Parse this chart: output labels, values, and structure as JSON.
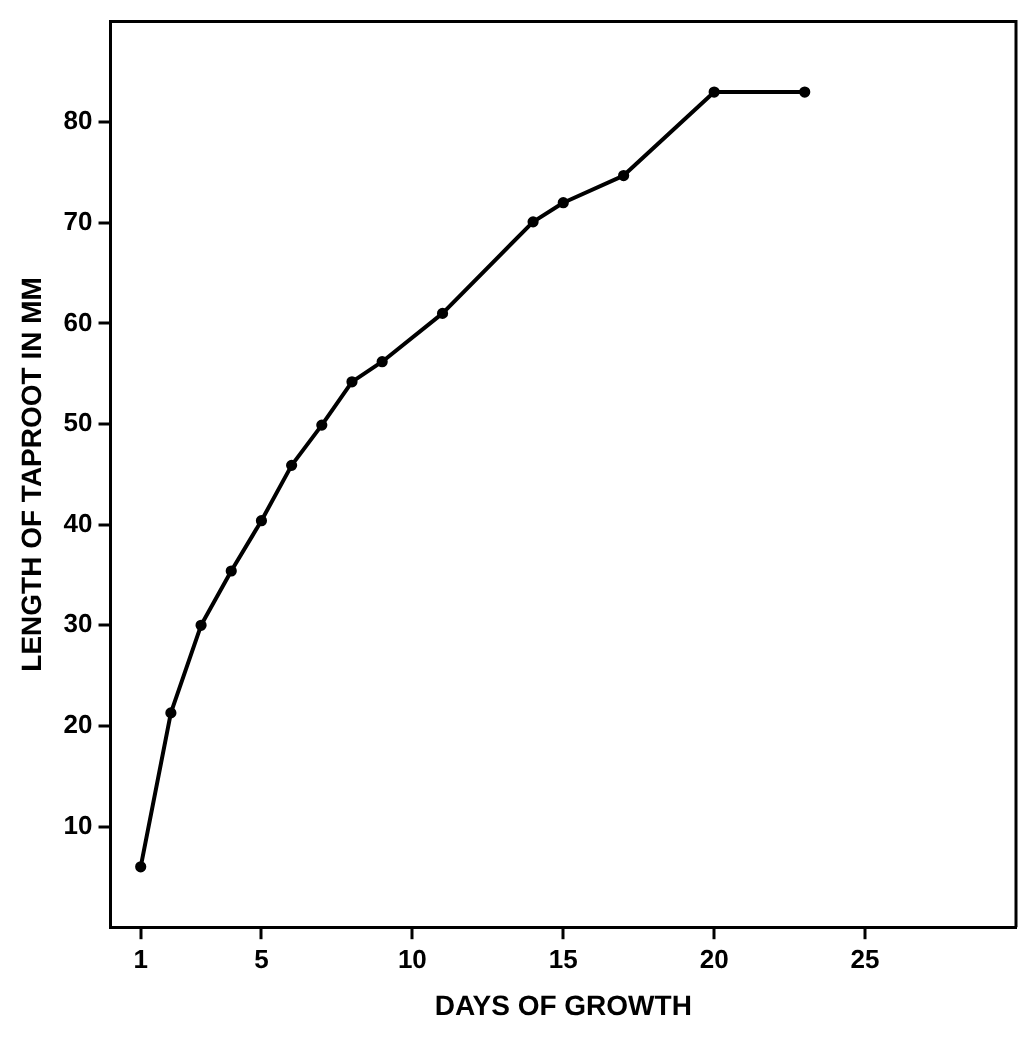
{
  "chart_data": {
    "type": "line",
    "xlabel": "DAYS OF GROWTH",
    "ylabel": "LENGTH OF TAPROOT IN MM",
    "x": [
      1,
      2,
      3,
      4,
      5,
      6,
      7,
      8,
      9,
      11,
      14,
      15,
      17,
      20,
      23
    ],
    "series": [
      {
        "color": "#000000",
        "values": [
          6,
          21.3,
          30,
          35.4,
          40.4,
          45.9,
          49.9,
          54.2,
          56.2,
          61,
          70.1,
          72,
          74.7,
          83,
          83
        ]
      }
    ],
    "xlim": [
      0,
      30
    ],
    "xticks": [
      1,
      5,
      10,
      15,
      20,
      25
    ],
    "ylim": [
      0,
      90
    ],
    "yticks": [
      10,
      20,
      30,
      40,
      50,
      60,
      70,
      80
    ],
    "grid": false,
    "legend": false,
    "marker": "circle",
    "line_style": "solid"
  }
}
